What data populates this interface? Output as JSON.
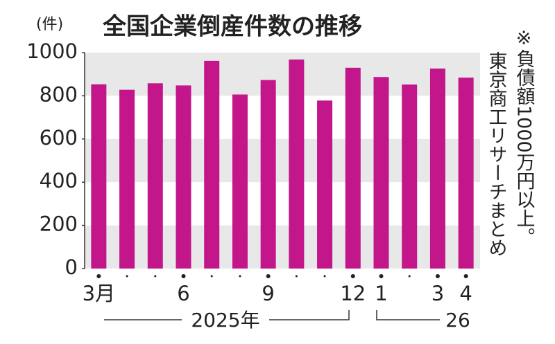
{
  "chart_data": {
    "type": "bar",
    "title": "全国企業倒産件数の推移",
    "y_unit": "(件)",
    "note": [
      "※負債額1000万円以上。",
      "東京商工リサーチまとめ"
    ],
    "categories": [
      "3月",
      null,
      null,
      "6",
      null,
      null,
      "9",
      null,
      null,
      "12",
      "1",
      null,
      "3",
      "4"
    ],
    "year_labels": [
      "2025年",
      "26"
    ],
    "values": [
      853,
      828,
      858,
      848,
      962,
      806,
      873,
      968,
      778,
      930,
      887,
      852,
      926,
      884
    ],
    "color": "#c2168a",
    "ylim": [
      0,
      1000
    ],
    "yticks": [
      0,
      200,
      400,
      600,
      800,
      1000
    ],
    "grid": true
  }
}
